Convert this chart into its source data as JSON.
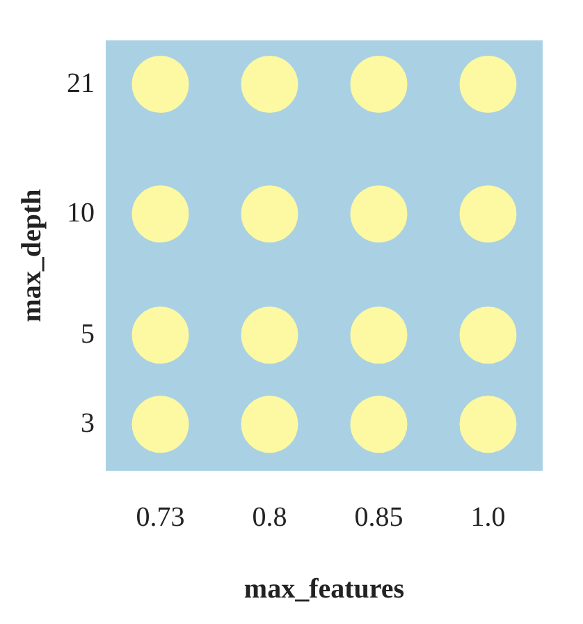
{
  "chart_data": {
    "type": "scatter",
    "xlabel": "max_features",
    "ylabel": "max_depth",
    "categories": [
      "0.73",
      "0.8",
      "0.85",
      "1.0"
    ],
    "log": "y",
    "ylim": [
      2.3,
      27
    ],
    "yticks": [
      3,
      5,
      10,
      21
    ],
    "series": [
      {
        "color": "#fdf8a2",
        "x": [
          "0.73",
          "0.8",
          "0.85",
          "1.0",
          "0.73",
          "0.8",
          "0.85",
          "1.0",
          "0.73",
          "0.8",
          "0.85",
          "1.0",
          "0.73",
          "0.8",
          "0.85",
          "1.0"
        ],
        "values": [
          21,
          21,
          21,
          21,
          10,
          10,
          10,
          10,
          5,
          5,
          5,
          5,
          3,
          3,
          3,
          3
        ]
      }
    ],
    "marker": "circle",
    "grid": false,
    "legend": false
  }
}
